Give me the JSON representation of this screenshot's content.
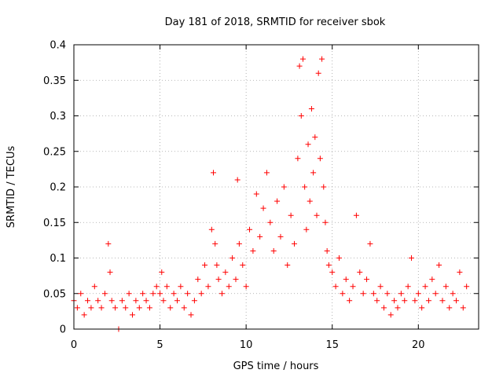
{
  "chart_data": {
    "type": "scatter",
    "title": "Day 181 of 2018, SRMTID for receiver sbok",
    "xlabel": "GPS time / hours",
    "ylabel": "SRMTID / TECUs",
    "xlim": [
      0,
      23.5
    ],
    "ylim": [
      0,
      0.4
    ],
    "xticks": [
      0,
      5,
      10,
      15,
      20
    ],
    "xtick_labels": [
      "0",
      "5",
      "10",
      "15",
      "20"
    ],
    "yticks": [
      0,
      0.05,
      0.1,
      0.15,
      0.2,
      0.25,
      0.3,
      0.35,
      0.4
    ],
    "ytick_labels": [
      "0",
      "0.05",
      "0.1",
      "0.15",
      "0.2",
      "0.25",
      "0.3",
      "0.35",
      "0.4"
    ],
    "grid": true,
    "marker": "+",
    "series": [
      {
        "name": "SRMTID",
        "color": "#ff0000",
        "x": [
          0.0,
          0.2,
          0.4,
          0.6,
          0.8,
          1.0,
          1.2,
          1.4,
          1.6,
          1.8,
          2.0,
          2.1,
          2.2,
          2.4,
          2.6,
          2.8,
          3.0,
          3.2,
          3.4,
          3.6,
          3.8,
          4.0,
          4.2,
          4.4,
          4.6,
          4.8,
          5.0,
          5.1,
          5.2,
          5.4,
          5.6,
          5.8,
          6.0,
          6.2,
          6.4,
          6.6,
          6.8,
          7.0,
          7.2,
          7.4,
          7.6,
          7.8,
          8.0,
          8.1,
          8.2,
          8.3,
          8.4,
          8.6,
          8.8,
          9.0,
          9.2,
          9.4,
          9.5,
          9.6,
          9.8,
          10.0,
          10.2,
          10.4,
          10.6,
          10.8,
          11.0,
          11.2,
          11.4,
          11.6,
          11.8,
          12.0,
          12.2,
          12.4,
          12.6,
          12.8,
          13.0,
          13.1,
          13.2,
          13.3,
          13.4,
          13.5,
          13.6,
          13.7,
          13.8,
          13.9,
          14.0,
          14.1,
          14.2,
          14.3,
          14.4,
          14.5,
          14.6,
          14.7,
          14.8,
          15.0,
          15.2,
          15.4,
          15.6,
          15.8,
          16.0,
          16.2,
          16.4,
          16.6,
          16.8,
          17.0,
          17.2,
          17.4,
          17.6,
          17.8,
          18.0,
          18.2,
          18.4,
          18.6,
          18.8,
          19.0,
          19.2,
          19.4,
          19.6,
          19.8,
          20.0,
          20.2,
          20.4,
          20.6,
          20.8,
          21.0,
          21.2,
          21.4,
          21.6,
          21.8,
          22.0,
          22.2,
          22.4,
          22.6,
          22.8
        ],
        "y": [
          0.04,
          0.03,
          0.05,
          0.02,
          0.04,
          0.03,
          0.06,
          0.04,
          0.03,
          0.05,
          0.12,
          0.08,
          0.04,
          0.03,
          0.0,
          0.04,
          0.03,
          0.05,
          0.02,
          0.04,
          0.03,
          0.05,
          0.04,
          0.03,
          0.05,
          0.06,
          0.05,
          0.08,
          0.04,
          0.06,
          0.03,
          0.05,
          0.04,
          0.06,
          0.03,
          0.05,
          0.02,
          0.04,
          0.07,
          0.05,
          0.09,
          0.06,
          0.14,
          0.22,
          0.12,
          0.09,
          0.07,
          0.05,
          0.08,
          0.06,
          0.1,
          0.07,
          0.21,
          0.12,
          0.09,
          0.06,
          0.14,
          0.11,
          0.19,
          0.13,
          0.17,
          0.22,
          0.15,
          0.11,
          0.18,
          0.13,
          0.2,
          0.09,
          0.16,
          0.12,
          0.24,
          0.37,
          0.3,
          0.38,
          0.2,
          0.14,
          0.26,
          0.18,
          0.31,
          0.22,
          0.27,
          0.16,
          0.36,
          0.24,
          0.38,
          0.2,
          0.15,
          0.11,
          0.09,
          0.08,
          0.06,
          0.1,
          0.05,
          0.07,
          0.04,
          0.06,
          0.16,
          0.08,
          0.05,
          0.07,
          0.12,
          0.05,
          0.04,
          0.06,
          0.03,
          0.05,
          0.02,
          0.04,
          0.03,
          0.05,
          0.04,
          0.06,
          0.1,
          0.04,
          0.05,
          0.03,
          0.06,
          0.04,
          0.07,
          0.05,
          0.09,
          0.04,
          0.06,
          0.03,
          0.05,
          0.04,
          0.08,
          0.03,
          0.06
        ]
      }
    ]
  }
}
